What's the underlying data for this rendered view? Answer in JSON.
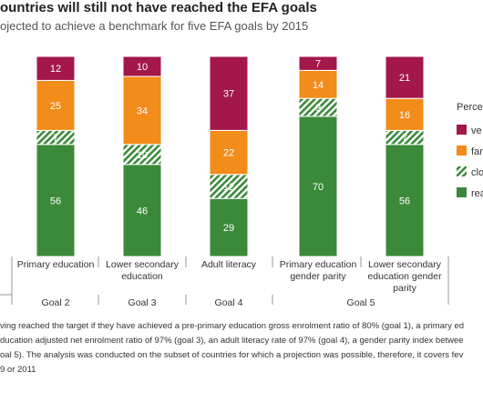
{
  "title": "ountries will still not have reached the EFA goals",
  "subtitle": "ojected to achieve a benchmark for five EFA goals by 2015",
  "footnote": [
    "ving reached the target if they have achieved a pre-primary education gross enrolment ratio of 80% (goal 1), a primary ed",
    "ducation adjusted net enrolment ratio of 97% (goal 3), an adult literacy rate of 97% (goal 4), a gender parity index betwee",
    "oal 5). The analysis was conducted on the subset of countries for which a projection was possible, therefore, it covers fev",
    "9 or 2011"
  ],
  "colors": {
    "very_far": "#a3174b",
    "far": "#f28c1a",
    "close": "#3b8a3a",
    "reached": "#3b8a3a"
  },
  "chart_data": {
    "type": "bar",
    "stacked": true,
    "categories": [
      [
        "Primary education"
      ],
      [
        "Lower secondary",
        "education"
      ],
      [
        "Adult literacy"
      ],
      [
        "Primary education",
        "gender parity"
      ],
      [
        "Lower secondary",
        "education gender",
        "parity"
      ]
    ],
    "goal_labels": [
      "Goal 2",
      "Goal 3",
      "Goal 4",
      "Goal 5"
    ],
    "series": [
      {
        "key": "reached",
        "values": [
          56,
          46,
          29,
          70,
          56
        ]
      },
      {
        "key": "close",
        "values": [
          7,
          10,
          12,
          9,
          7
        ]
      },
      {
        "key": "far",
        "values": [
          25,
          34,
          22,
          14,
          16
        ]
      },
      {
        "key": "very_far",
        "values": [
          12,
          10,
          37,
          7,
          21
        ]
      }
    ],
    "legend_title": "Percen",
    "legend_labels": [
      "ve",
      "far",
      "clo",
      "rea"
    ],
    "ylim": [
      0,
      100
    ],
    "grid": false,
    "legend_position": "right"
  }
}
